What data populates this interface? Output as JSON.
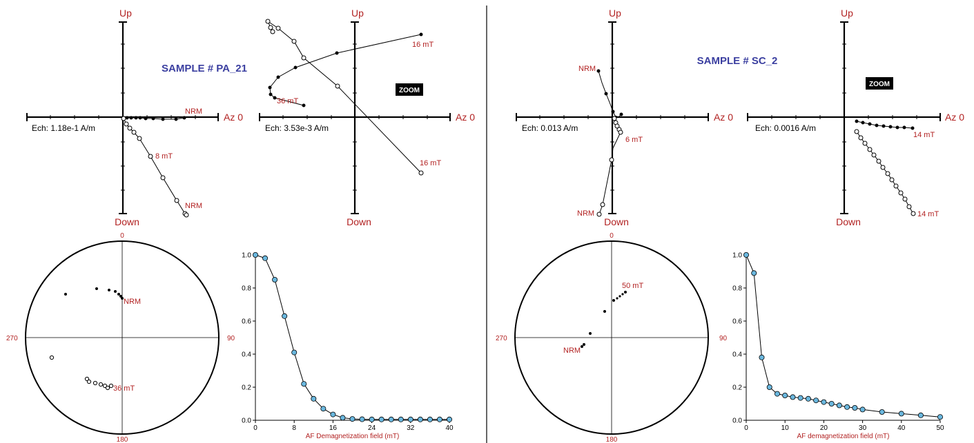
{
  "colors": {
    "axis_label": "#b22222",
    "sample_title": "#3b3fa0",
    "marker_fill": "#6ab7de",
    "line": "#000000"
  },
  "panels": [
    {
      "sample_title": "SAMPLE # PA_21",
      "zijderveld": {
        "up_label": "Up",
        "down_label": "Down",
        "az_label": "Az 0",
        "scale_label": "Ech: 1.18e-1 A/m",
        "annotations": [
          "NRM",
          "8 mT",
          "NRM"
        ]
      },
      "zijderveld_zoom": {
        "up_label": "Up",
        "down_label": "Down",
        "az_label": "Az 0",
        "scale_label": "Ech: 3.53e-3 A/m",
        "badge": "ZOOM",
        "annotations": [
          "16 mT",
          "36 mT",
          "16 mT"
        ]
      },
      "stereonet": {
        "north": "0",
        "east": "90",
        "south": "180",
        "west": "270",
        "annotations": [
          "NRM",
          "36 mT"
        ]
      }
    },
    {
      "sample_title": "SAMPLE # SC_2",
      "zijderveld": {
        "up_label": "Up",
        "down_label": "Down",
        "az_label": "Az 0",
        "scale_label": "Ech: 0.013 A/m",
        "annotations": [
          "NRM",
          "6 mT",
          "NRM"
        ]
      },
      "zijderveld_zoom": {
        "up_label": "Up",
        "down_label": "Down",
        "az_label": "Az 0",
        "scale_label": "Ech: 0.0016 A/m",
        "badge": "ZOOM",
        "annotations": [
          "14 mT",
          "14 mT"
        ]
      },
      "stereonet": {
        "north": "0",
        "east": "90",
        "south": "180",
        "west": "270",
        "annotations": [
          "50 mT",
          "NRM"
        ]
      }
    }
  ],
  "chart_data": [
    {
      "type": "line",
      "xlabel": "AF Demagnetization field (mT)",
      "ylabel": "",
      "xlim": [
        0,
        40
      ],
      "ylim": [
        0,
        1.0
      ],
      "xticks": [
        0,
        8,
        16,
        24,
        32,
        40
      ],
      "yticks": [
        0.0,
        0.2,
        0.4,
        0.6,
        0.8,
        1.0
      ],
      "ytick_labels": [
        "0.0",
        "0.2",
        "0.4",
        "0.6",
        "0.8",
        "1.0"
      ],
      "x": [
        0,
        2,
        4,
        6,
        8,
        10,
        12,
        14,
        16,
        18,
        20,
        22,
        24,
        26,
        28,
        30,
        32,
        34,
        36,
        38,
        40
      ],
      "y": [
        1.0,
        0.98,
        0.85,
        0.63,
        0.41,
        0.22,
        0.13,
        0.07,
        0.035,
        0.015,
        0.008,
        0.006,
        0.005,
        0.005,
        0.005,
        0.005,
        0.005,
        0.005,
        0.005,
        0.005,
        0.005
      ]
    },
    {
      "type": "line",
      "xlabel": "AF demagnetization field (mT)",
      "ylabel": "",
      "xlim": [
        0,
        50
      ],
      "ylim": [
        0,
        1.0
      ],
      "xticks": [
        0,
        10,
        20,
        30,
        40,
        50
      ],
      "yticks": [
        0.0,
        0.2,
        0.4,
        0.6,
        0.8,
        1.0
      ],
      "ytick_labels": [
        "0.0",
        "0.2",
        "0.4",
        "0.6",
        "0.8",
        "1.0"
      ],
      "x": [
        0,
        2,
        4,
        6,
        8,
        10,
        12,
        14,
        16,
        18,
        20,
        22,
        24,
        26,
        28,
        30,
        35,
        40,
        45,
        50
      ],
      "y": [
        1.0,
        0.89,
        0.38,
        0.2,
        0.16,
        0.15,
        0.14,
        0.135,
        0.13,
        0.12,
        0.11,
        0.1,
        0.09,
        0.08,
        0.075,
        0.065,
        0.05,
        0.04,
        0.03,
        0.02
      ]
    }
  ]
}
